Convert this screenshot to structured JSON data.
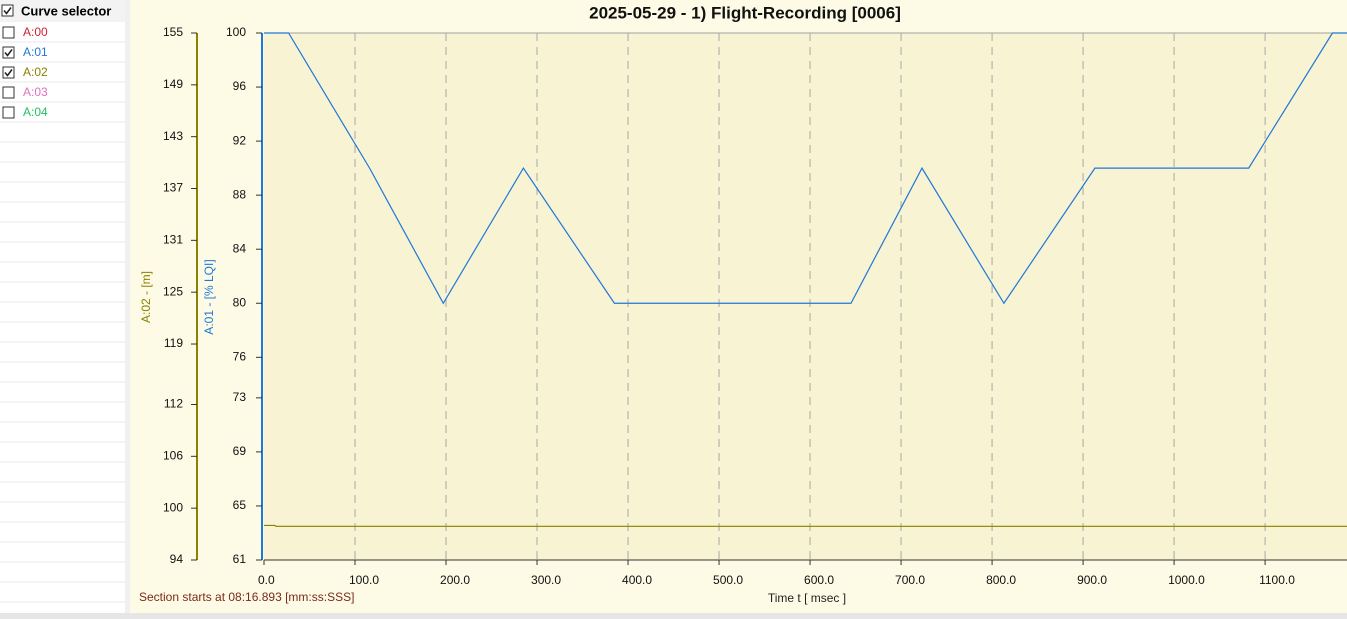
{
  "sidebar": {
    "title": "Curve selector",
    "title_checked": true
  },
  "chart_data": {
    "type": "line",
    "title": "2025-05-29 - 1) Flight-Recording [0006]",
    "x_label": "Time  t  [ msec ]",
    "footer": "Section starts at  08:16.893 [mm:ss:SSS]",
    "y_label": "A:01  -  [% LQI]",
    "y2_label": "A:02  -  [m]",
    "xlim": [
      0,
      1190
    ],
    "xticks": [
      {
        "value": 0,
        "label": "0.0"
      },
      {
        "value": 100,
        "label": "100.0"
      },
      {
        "value": 200,
        "label": "200.0"
      },
      {
        "value": 300,
        "label": "300.0"
      },
      {
        "value": 400,
        "label": "400.0"
      },
      {
        "value": 500,
        "label": "500.0"
      },
      {
        "value": 600,
        "label": "600.0"
      },
      {
        "value": 700,
        "label": "700.0"
      },
      {
        "value": 800,
        "label": "800.0"
      },
      {
        "value": 900,
        "label": "900.0"
      },
      {
        "value": 1000,
        "label": "1000.0"
      },
      {
        "value": 1100,
        "label": "1100.0"
      }
    ],
    "ylim": [
      61,
      100
    ],
    "yticks": [
      61,
      65,
      69,
      73,
      76,
      80,
      84,
      88,
      92,
      96,
      100
    ],
    "y2lim": [
      94,
      155
    ],
    "y2ticks": [
      94,
      100,
      106,
      112,
      119,
      125,
      131,
      137,
      143,
      149,
      155
    ],
    "grid": true,
    "series": [
      {
        "name": "A:00",
        "color": "#d02030",
        "checked": false
      },
      {
        "name": "A:01",
        "color": "#1e78d8",
        "checked": true,
        "axis": "y",
        "x": [
          0,
          27,
          116,
          197,
          285,
          385,
          645,
          723,
          813,
          913,
          1082,
          1174,
          1190
        ],
        "values": [
          100,
          100,
          90,
          80,
          90,
          80,
          80,
          90,
          80,
          90,
          90,
          100,
          100
        ]
      },
      {
        "name": "A:02",
        "color": "#8b8000",
        "checked": true,
        "axis": "y2",
        "x": [
          0,
          12,
          13,
          1190
        ],
        "values": [
          98.0,
          98.0,
          97.9,
          97.9
        ]
      },
      {
        "name": "A:03",
        "color": "#e070c0",
        "checked": false
      },
      {
        "name": "A:04",
        "color": "#20c060",
        "checked": false
      }
    ]
  }
}
